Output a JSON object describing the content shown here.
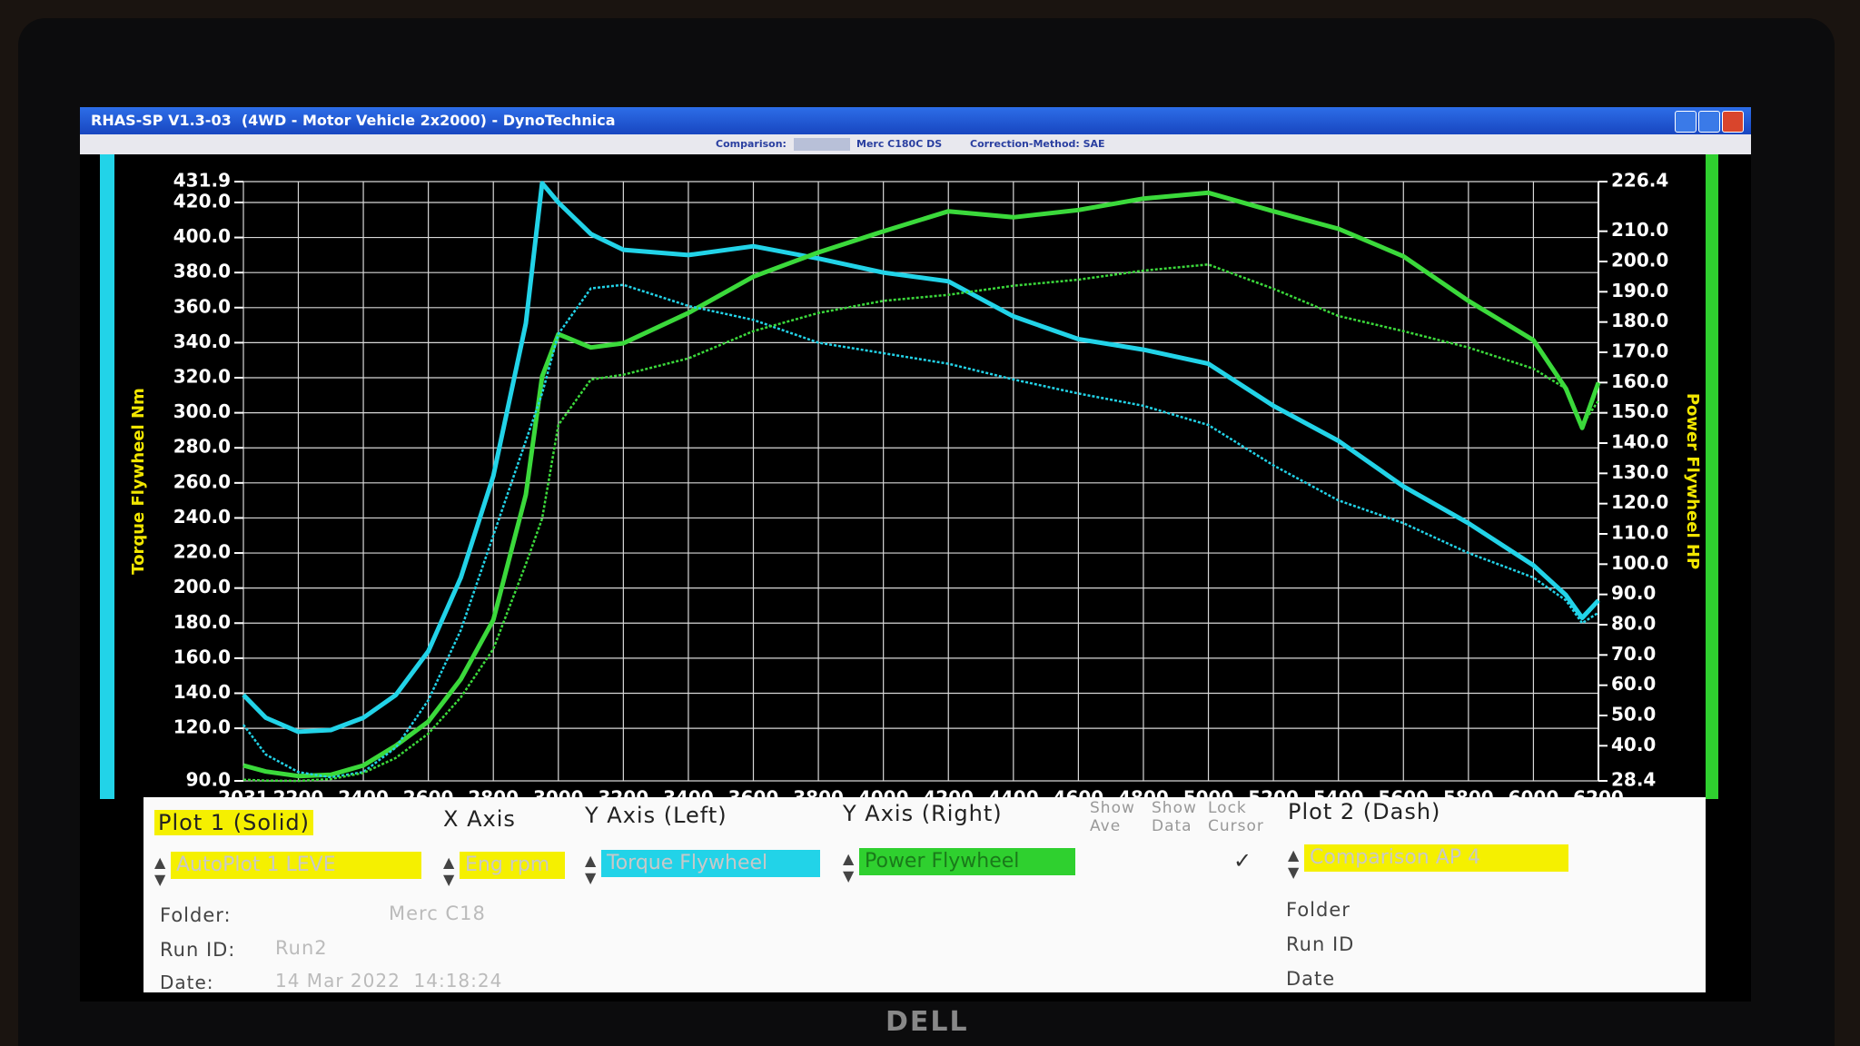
{
  "window": {
    "title": "RHAS-SP V1.3-03  (4WD - Motor Vehicle 2x2000) - DynoTechnica",
    "comparison_label": "Comparison:",
    "comparison_value": "Merc C180C DS",
    "correction": "Correction-Method: SAE"
  },
  "chart_data": {
    "type": "line",
    "y_label": "Torque Flywheel Nm",
    "y2_label": "Power Flywheel HP",
    "grid": true,
    "x": [
      2031,
      2100,
      2200,
      2300,
      2400,
      2500,
      2600,
      2700,
      2800,
      2900,
      2950,
      3000,
      3100,
      3200,
      3400,
      3600,
      3800,
      4000,
      4200,
      4400,
      4600,
      4800,
      5000,
      5200,
      5400,
      5600,
      5800,
      6000,
      6100,
      6150,
      6200
    ],
    "xlim": [
      2031,
      6200
    ],
    "xticks": [
      2031,
      2200,
      2400,
      2600,
      2800,
      3000,
      3200,
      3400,
      3600,
      3800,
      4000,
      4200,
      4400,
      4600,
      4800,
      5000,
      5200,
      5400,
      5600,
      5800,
      6000,
      6200
    ],
    "ylim": [
      90,
      431.9
    ],
    "yticks": [
      {
        "value": 90,
        "label": "90.0"
      },
      {
        "value": 120,
        "label": "120.0"
      },
      {
        "value": 140,
        "label": "140.0"
      },
      {
        "value": 160,
        "label": "160.0"
      },
      {
        "value": 180,
        "label": "180.0"
      },
      {
        "value": 200,
        "label": "200.0"
      },
      {
        "value": 220,
        "label": "220.0"
      },
      {
        "value": 240,
        "label": "240.0"
      },
      {
        "value": 260,
        "label": "260.0"
      },
      {
        "value": 280,
        "label": "280.0"
      },
      {
        "value": 300,
        "label": "300.0"
      },
      {
        "value": 320,
        "label": "320.0"
      },
      {
        "value": 340,
        "label": "340.0"
      },
      {
        "value": 360,
        "label": "360.0"
      },
      {
        "value": 380,
        "label": "380.0"
      },
      {
        "value": 400,
        "label": "400.0"
      },
      {
        "value": 420,
        "label": "420.0"
      },
      431.9
    ],
    "y2lim": [
      28.4,
      226.4
    ],
    "y2ticks": [
      28.4,
      {
        "value": 40,
        "label": "40.0"
      },
      {
        "value": 50,
        "label": "50.0"
      },
      {
        "value": 60,
        "label": "60.0"
      },
      {
        "value": 70,
        "label": "70.0"
      },
      {
        "value": 80,
        "label": "80.0"
      },
      {
        "value": 90,
        "label": "90.0"
      },
      {
        "value": 100,
        "label": "100.0"
      },
      {
        "value": 110,
        "label": "110.0"
      },
      {
        "value": 120,
        "label": "120.0"
      },
      {
        "value": 130,
        "label": "130.0"
      },
      {
        "value": 140,
        "label": "140.0"
      },
      {
        "value": 150,
        "label": "150.0"
      },
      {
        "value": 160,
        "label": "160.0"
      },
      {
        "value": 170,
        "label": "170.0"
      },
      {
        "value": 180,
        "label": "180.0"
      },
      {
        "value": 190,
        "label": "190.0"
      },
      {
        "value": 200,
        "label": "200.0"
      },
      {
        "value": 210,
        "label": "210.0"
      },
      226.4
    ],
    "series": [
      {
        "color": "#22d3e8",
        "style": "solid",
        "axis": "y",
        "values": [
          139,
          126,
          118,
          119,
          126,
          139,
          164,
          206,
          264,
          351,
          431,
          420,
          402,
          393,
          390,
          395,
          388,
          380,
          375,
          355,
          342,
          336,
          328,
          304,
          284,
          258,
          237,
          213,
          196,
          183,
          193
        ]
      },
      {
        "color": "#3bd93b",
        "style": "solid",
        "axis": "y2",
        "values": [
          33.5,
          31.5,
          30,
          30.4,
          33.5,
          40,
          48,
          62,
          81.6,
          123,
          162,
          176,
          171.6,
          173,
          183,
          195,
          203,
          210,
          216.6,
          214.6,
          217,
          220.8,
          222.7,
          216.6,
          210.8,
          201.7,
          187,
          174,
          158,
          145,
          160
        ]
      },
      {
        "color": "#22d3e8",
        "style": "dash",
        "axis": "y",
        "values": [
          122,
          105,
          95,
          92,
          95,
          109,
          136,
          176,
          230,
          284,
          311,
          345,
          371,
          373,
          361,
          353,
          340,
          334,
          328,
          319,
          311,
          304,
          293,
          270,
          250,
          237,
          220,
          206,
          193,
          180,
          186
        ]
      },
      {
        "color": "#3bd93b",
        "style": "dash",
        "axis": "y2",
        "values": [
          28.8,
          28.5,
          28.4,
          29,
          31,
          36,
          44,
          56,
          72,
          100,
          115,
          146,
          161,
          162.6,
          168,
          177,
          183,
          187,
          189,
          192,
          194,
          197,
          199,
          191,
          182,
          177,
          171.6,
          164.6,
          158,
          146,
          154
        ]
      }
    ]
  },
  "panel": {
    "plot1": {
      "heading": "Plot 1 (Solid)",
      "selection": "AutoPlot 1 LEVE",
      "folder_label": "Folder:",
      "folder": "Merc C18",
      "run_id_label": "Run ID:",
      "run_id": "Run2",
      "date_label": "Date:",
      "date": "14 Mar 2022  14:18:24"
    },
    "x_axis": {
      "heading": "X Axis",
      "selection": "Eng rpm"
    },
    "y_left": {
      "heading": "Y Axis (Left)",
      "selection": "Torque Flywheel"
    },
    "y_right": {
      "heading": "Y Axis (Right)",
      "selection": "Power Flywheel"
    },
    "options": {
      "show_ave": "Show Ave",
      "show_data": "Show Data",
      "lock_cursor": "Lock Cursor",
      "check": "✓"
    },
    "plot2": {
      "heading": "Plot 2 (Dash)",
      "selection": "Comparison AP 4",
      "folder_label": "Folder",
      "run_id_label": "Run ID",
      "date_label": "Date"
    }
  },
  "monitor": {
    "brand": "DELL"
  }
}
